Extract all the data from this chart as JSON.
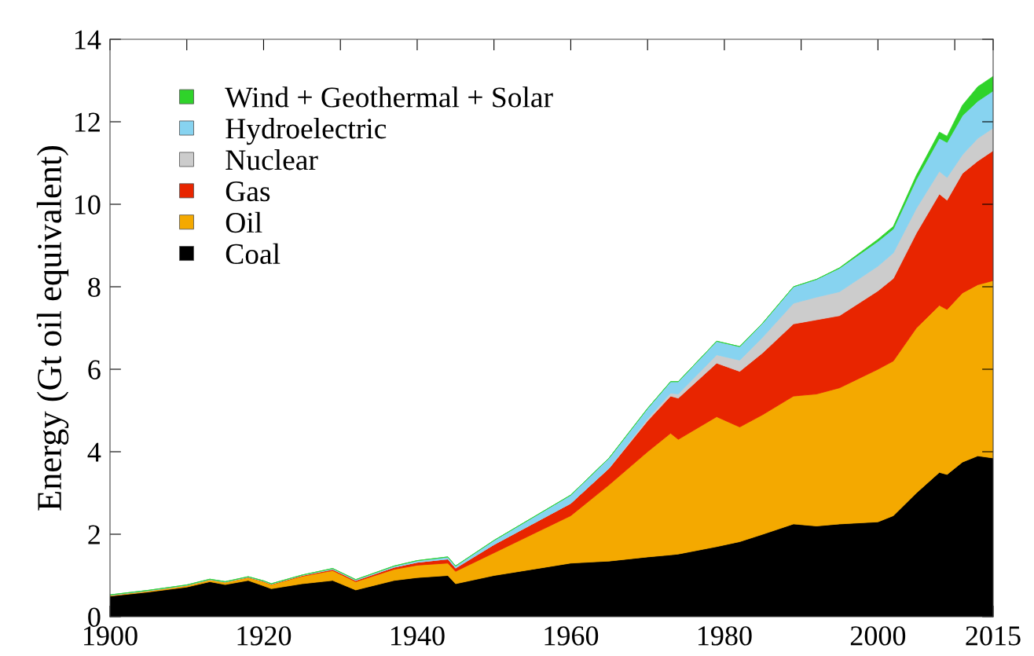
{
  "chart_data": {
    "type": "area",
    "stacked": true,
    "ylabel": "Energy (Gt oil equivalent)",
    "x": [
      1900,
      1905,
      1910,
      1913,
      1915,
      1918,
      1920,
      1921,
      1925,
      1929,
      1932,
      1937,
      1940,
      1944,
      1945,
      1950,
      1955,
      1960,
      1965,
      1970,
      1973,
      1974,
      1979,
      1982,
      1985,
      1989,
      1992,
      1995,
      2000,
      2002,
      2005,
      2008,
      2009,
      2011,
      2013,
      2015
    ],
    "series": [
      {
        "name": "Coal",
        "color": "#000000",
        "values": [
          0.5,
          0.6,
          0.72,
          0.85,
          0.78,
          0.88,
          0.75,
          0.68,
          0.8,
          0.88,
          0.65,
          0.88,
          0.95,
          1.0,
          0.8,
          1.0,
          1.15,
          1.3,
          1.35,
          1.45,
          1.5,
          1.52,
          1.7,
          1.82,
          2.0,
          2.25,
          2.2,
          2.25,
          2.3,
          2.45,
          3.0,
          3.5,
          3.45,
          3.75,
          3.9,
          3.85
        ]
      },
      {
        "name": "Oil",
        "color": "#f4a900",
        "values": [
          0.02,
          0.03,
          0.04,
          0.05,
          0.06,
          0.07,
          0.1,
          0.1,
          0.18,
          0.24,
          0.2,
          0.27,
          0.3,
          0.3,
          0.3,
          0.55,
          0.85,
          1.15,
          1.85,
          2.55,
          2.95,
          2.78,
          3.15,
          2.78,
          2.9,
          3.1,
          3.2,
          3.3,
          3.7,
          3.75,
          4.0,
          4.05,
          4.0,
          4.1,
          4.15,
          4.3
        ]
      },
      {
        "name": "Gas",
        "color": "#e82500",
        "values": [
          0,
          0,
          0,
          0,
          0,
          0.01,
          0.01,
          0.01,
          0.02,
          0.03,
          0.03,
          0.05,
          0.07,
          0.1,
          0.08,
          0.2,
          0.25,
          0.3,
          0.4,
          0.75,
          0.9,
          1.0,
          1.3,
          1.35,
          1.5,
          1.75,
          1.8,
          1.75,
          1.9,
          2.0,
          2.3,
          2.7,
          2.65,
          2.9,
          3.0,
          3.15
        ]
      },
      {
        "name": "Nuclear",
        "color": "#cccccc",
        "values": [
          0,
          0,
          0,
          0,
          0,
          0,
          0,
          0,
          0,
          0,
          0,
          0,
          0,
          0,
          0,
          0,
          0,
          0,
          0.01,
          0.05,
          0.07,
          0.1,
          0.2,
          0.27,
          0.38,
          0.5,
          0.55,
          0.58,
          0.6,
          0.62,
          0.6,
          0.55,
          0.55,
          0.45,
          0.55,
          0.55
        ]
      },
      {
        "name": "Hydroelectric",
        "color": "#87d3f0",
        "values": [
          0.01,
          0.01,
          0.01,
          0.01,
          0.01,
          0.01,
          0.01,
          0.01,
          0.01,
          0.02,
          0.02,
          0.03,
          0.04,
          0.05,
          0.05,
          0.1,
          0.15,
          0.2,
          0.24,
          0.25,
          0.28,
          0.3,
          0.33,
          0.33,
          0.34,
          0.4,
          0.43,
          0.57,
          0.6,
          0.58,
          0.7,
          0.8,
          0.85,
          0.95,
          0.9,
          0.9
        ]
      },
      {
        "name": "Wind + Geothermal + Solar",
        "color": "#2fd32a",
        "values": [
          0,
          0,
          0,
          0,
          0,
          0,
          0,
          0,
          0,
          0,
          0,
          0,
          0,
          0,
          0,
          0,
          0,
          0,
          0,
          0,
          0,
          0,
          0,
          0,
          0,
          0,
          0,
          0.01,
          0.05,
          0.06,
          0.1,
          0.15,
          0.15,
          0.25,
          0.35,
          0.35
        ]
      }
    ],
    "xlim": [
      1900,
      2015
    ],
    "xticks": [
      1900,
      {
        "value": 1910,
        "label": null
      },
      1920,
      {
        "value": 1930,
        "label": null
      },
      1940,
      {
        "value": 1950,
        "label": null
      },
      1960,
      {
        "value": 1970,
        "label": null
      },
      1980,
      {
        "value": 1990,
        "label": null
      },
      2000,
      {
        "value": 2010,
        "label": null
      },
      2015
    ],
    "ylim": [
      0,
      14
    ],
    "yticks": [
      0,
      2,
      4,
      6,
      8,
      10,
      12,
      14
    ],
    "legend": "top left",
    "grid": false
  }
}
